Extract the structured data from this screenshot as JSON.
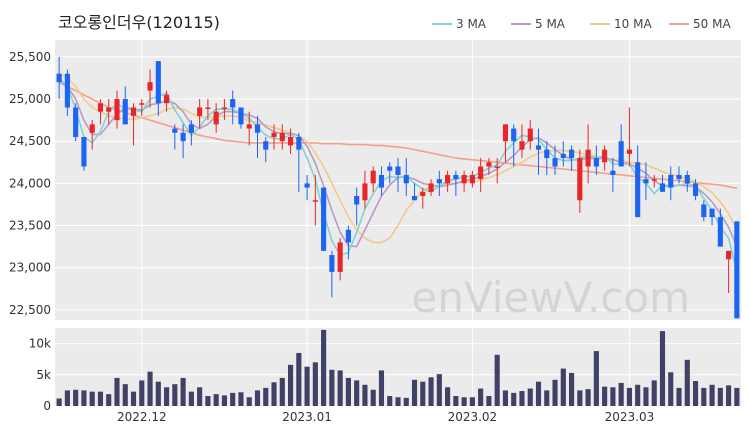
{
  "chart_data": {
    "type": "candlestick",
    "title": "코오롱인더우(120115)",
    "watermark": "enViewV.com",
    "colors": {
      "up": "#e8262a",
      "down": "#1c64f2",
      "ma3": "#7fd3cf",
      "ma5": "#b89ac8",
      "ma10": "#f2c98a",
      "ma50": "#f4a08a",
      "volume": "#3f4166",
      "plot_bg": "#ebebeb",
      "grid": "#ffffff"
    },
    "legend": [
      {
        "name": "3 MA",
        "key": "ma3"
      },
      {
        "name": "5 MA",
        "key": "ma5"
      },
      {
        "name": "10 MA",
        "key": "ma10"
      },
      {
        "name": "50 MA",
        "key": "ma50"
      }
    ],
    "price_axis": {
      "ylim": [
        22380,
        25700
      ],
      "ticks": [
        22500,
        23000,
        23500,
        24000,
        24500,
        25000,
        25500
      ],
      "tick_labels": [
        "22,500",
        "23,000",
        "23,500",
        "24,000",
        "24,500",
        "25,000",
        "25,500"
      ]
    },
    "volume_axis": {
      "ylim": [
        0,
        12500
      ],
      "ticks": [
        0,
        5000,
        10000
      ],
      "tick_labels": [
        "0",
        "5k",
        "10k"
      ]
    },
    "x_ticks": [
      {
        "index": 10,
        "label": "2022.12"
      },
      {
        "index": 30,
        "label": "2023.01"
      },
      {
        "index": 50,
        "label": "2023.02"
      },
      {
        "index": 69,
        "label": "2023.03"
      }
    ],
    "candles": [
      [
        25300,
        25500,
        25000,
        25200
      ],
      [
        25300,
        25350,
        24800,
        24900
      ],
      [
        24900,
        24950,
        24500,
        24550
      ],
      [
        24550,
        24550,
        24150,
        24200
      ],
      [
        24600,
        24750,
        24400,
        24700
      ],
      [
        24850,
        25000,
        24700,
        24950
      ],
      [
        24850,
        25000,
        24700,
        24900
      ],
      [
        24750,
        25100,
        24650,
        25000
      ],
      [
        25000,
        25150,
        24700,
        24700
      ],
      [
        24800,
        24950,
        24450,
        24900
      ],
      [
        24950,
        25000,
        24800,
        24950
      ],
      [
        25100,
        25350,
        24900,
        25200
      ],
      [
        25450,
        25450,
        24800,
        24950
      ],
      [
        24950,
        25100,
        24850,
        25050
      ],
      [
        24650,
        24700,
        24400,
        24600
      ],
      [
        24600,
        24700,
        24300,
        24500
      ],
      [
        24700,
        24750,
        24450,
        24600
      ],
      [
        24800,
        25000,
        24650,
        24900
      ],
      [
        24900,
        25000,
        24750,
        24900
      ],
      [
        24700,
        24950,
        24600,
        24850
      ],
      [
        24900,
        25000,
        24750,
        24900
      ],
      [
        25000,
        25100,
        24700,
        24900
      ],
      [
        24900,
        24900,
        24650,
        24700
      ],
      [
        24650,
        24850,
        24450,
        24700
      ],
      [
        24700,
        24800,
        24300,
        24600
      ],
      [
        24500,
        24550,
        24250,
        24400
      ],
      [
        24550,
        24700,
        24400,
        24600
      ],
      [
        24500,
        24700,
        24400,
        24600
      ],
      [
        24450,
        24650,
        24350,
        24550
      ],
      [
        24550,
        24600,
        23900,
        24400
      ],
      [
        24000,
        24100,
        23800,
        23950
      ],
      [
        23800,
        24100,
        23500,
        23800
      ],
      [
        23950,
        23950,
        23200,
        23200
      ],
      [
        23150,
        23200,
        22650,
        22950
      ],
      [
        22950,
        23350,
        22850,
        23300
      ],
      [
        23450,
        23500,
        23100,
        23300
      ],
      [
        23850,
        23950,
        23500,
        23750
      ],
      [
        23800,
        24150,
        23700,
        24000
      ],
      [
        24000,
        24200,
        23900,
        24150
      ],
      [
        24100,
        24200,
        23850,
        23950
      ],
      [
        24200,
        24250,
        24000,
        24150
      ],
      [
        24200,
        24300,
        23900,
        24100
      ],
      [
        24100,
        24300,
        23850,
        24000
      ],
      [
        23850,
        24000,
        23800,
        23800
      ],
      [
        23850,
        23950,
        23700,
        23900
      ],
      [
        23900,
        24050,
        23850,
        24000
      ],
      [
        24050,
        24150,
        23850,
        24000
      ],
      [
        24000,
        24150,
        23900,
        24100
      ],
      [
        24100,
        24150,
        23850,
        24050
      ],
      [
        24000,
        24150,
        23900,
        24100
      ],
      [
        24000,
        24150,
        23950,
        24100
      ],
      [
        24050,
        24300,
        23900,
        24200
      ],
      [
        24200,
        24300,
        24100,
        24250
      ],
      [
        24200,
        24300,
        24000,
        24200
      ],
      [
        24500,
        24700,
        24250,
        24700
      ],
      [
        24650,
        24700,
        24200,
        24500
      ],
      [
        24400,
        24700,
        24300,
        24500
      ],
      [
        24500,
        24750,
        24400,
        24650
      ],
      [
        24450,
        24650,
        24100,
        24400
      ],
      [
        24400,
        24500,
        24100,
        24300
      ],
      [
        24300,
        24450,
        24100,
        24200
      ],
      [
        24350,
        24500,
        24200,
        24300
      ],
      [
        24400,
        24450,
        24150,
        24300
      ],
      [
        23800,
        24400,
        23650,
        24300
      ],
      [
        24200,
        24700,
        24000,
        24400
      ],
      [
        24300,
        24450,
        24100,
        24200
      ],
      [
        24250,
        24450,
        24150,
        24400
      ],
      [
        24150,
        24300,
        23900,
        24100
      ],
      [
        24500,
        24700,
        24200,
        24200
      ],
      [
        24350,
        24900,
        24200,
        24400
      ],
      [
        24250,
        24450,
        23600,
        23600
      ],
      [
        24050,
        24250,
        23800,
        24000
      ],
      [
        24050,
        24100,
        23950,
        24050
      ],
      [
        24000,
        24100,
        23900,
        23900
      ],
      [
        24100,
        24200,
        23800,
        23950
      ],
      [
        24100,
        24200,
        24000,
        24050
      ],
      [
        24100,
        24150,
        23900,
        24000
      ],
      [
        24000,
        24050,
        23800,
        23850
      ],
      [
        23750,
        23800,
        23550,
        23600
      ],
      [
        23700,
        23700,
        23500,
        23600
      ],
      [
        23600,
        23700,
        23250,
        23250
      ],
      [
        23100,
        23200,
        22700,
        23200
      ],
      [
        23550,
        23550,
        22400,
        22400
      ]
    ],
    "ma3": [
      25250,
      25150,
      24880,
      24550,
      24480,
      24620,
      24850,
      24950,
      24880,
      24870,
      24850,
      25000,
      25030,
      25070,
      24870,
      24720,
      24570,
      24670,
      24800,
      24880,
      24880,
      24880,
      24830,
      24770,
      24670,
      24570,
      24530,
      24530,
      24580,
      24520,
      24300,
      24050,
      23650,
      23320,
      23150,
      23180,
      23420,
      23700,
      23880,
      24030,
      24080,
      24070,
      24080,
      24000,
      23930,
      23900,
      23970,
      24030,
      24050,
      24080,
      24080,
      24130,
      24180,
      24220,
      24380,
      24480,
      24570,
      24550,
      24520,
      24400,
      24300,
      24270,
      24270,
      24300,
      24330,
      24300,
      24330,
      24230,
      24230,
      24230,
      24070,
      24000,
      23880,
      23980,
      23970,
      23980,
      24000,
      23970,
      23820,
      23680,
      23480,
      23350,
      22950
    ],
    "ma5": [
      25200,
      25150,
      25000,
      24750,
      24580,
      24580,
      24700,
      24820,
      24900,
      24880,
      24870,
      24930,
      24950,
      24980,
      24950,
      24850,
      24700,
      24650,
      24700,
      24800,
      24850,
      24850,
      24830,
      24810,
      24770,
      24670,
      24610,
      24590,
      24590,
      24570,
      24440,
      24240,
      23970,
      23680,
      23420,
      23260,
      23250,
      23450,
      23650,
      23850,
      23980,
      24070,
      24080,
      24050,
      24000,
      23980,
      23960,
      23980,
      24000,
      24030,
      24050,
      24080,
      24120,
      24170,
      24250,
      24330,
      24430,
      24520,
      24540,
      24480,
      24400,
      24330,
      24280,
      24280,
      24300,
      24290,
      24300,
      24280,
      24250,
      24230,
      24180,
      24120,
      24030,
      23970,
      23960,
      23980,
      23970,
      23960,
      23880,
      23780,
      23640,
      23480,
      23250
    ],
    "ma10": [
      25300,
      25250,
      25150,
      25000,
      24900,
      24850,
      24800,
      24780,
      24760,
      24760,
      24780,
      24800,
      24830,
      24880,
      24900,
      24880,
      24830,
      24790,
      24780,
      24790,
      24800,
      24800,
      24780,
      24740,
      24720,
      24690,
      24660,
      24630,
      24600,
      24560,
      24500,
      24360,
      24200,
      24000,
      23800,
      23600,
      23450,
      23350,
      23300,
      23300,
      23350,
      23500,
      23680,
      23800,
      23920,
      23960,
      23980,
      24000,
      24000,
      24020,
      24020,
      24040,
      24070,
      24100,
      24150,
      24200,
      24250,
      24310,
      24360,
      24380,
      24390,
      24390,
      24380,
      24360,
      24340,
      24320,
      24300,
      24280,
      24270,
      24250,
      24240,
      24220,
      24180,
      24140,
      24110,
      24080,
      24060,
      24020,
      23960,
      23890,
      23780,
      23640,
      23450
    ],
    "ma50": [
      25200,
      25150,
      25100,
      25050,
      25000,
      24950,
      24900,
      24870,
      24840,
      24810,
      24780,
      24750,
      24720,
      24690,
      24660,
      24630,
      24600,
      24570,
      24550,
      24530,
      24510,
      24500,
      24490,
      24480,
      24480,
      24480,
      24480,
      24480,
      24480,
      24480,
      24480,
      24480,
      24470,
      24470,
      24470,
      24460,
      24460,
      24460,
      24450,
      24450,
      24440,
      24430,
      24420,
      24400,
      24380,
      24360,
      24340,
      24320,
      24300,
      24290,
      24280,
      24270,
      24260,
      24250,
      24240,
      24230,
      24220,
      24210,
      24200,
      24190,
      24180,
      24170,
      24160,
      24150,
      24140,
      24130,
      24120,
      24110,
      24100,
      24090,
      24080,
      24070,
      24060,
      24050,
      24040,
      24030,
      24020,
      24010,
      24000,
      23990,
      23980,
      23960,
      23940
    ],
    "volume": [
      1200,
      2500,
      2600,
      2500,
      2300,
      2300,
      1900,
      4500,
      3500,
      2300,
      4100,
      5500,
      3900,
      3000,
      3500,
      4500,
      2300,
      3000,
      1600,
      1900,
      1700,
      2100,
      2200,
      1400,
      2500,
      2900,
      3800,
      4500,
      6600,
      8500,
      6300,
      7000,
      12200,
      5800,
      5700,
      4500,
      4100,
      3400,
      2600,
      5700,
      1600,
      1400,
      1300,
      4200,
      3900,
      4600,
      5100,
      3000,
      1600,
      1400,
      1400,
      2800,
      1600,
      8200,
      2500,
      2100,
      2400,
      2800,
      3900,
      2500,
      4200,
      6000,
      5300,
      2500,
      2700,
      8800,
      3100,
      3000,
      3700,
      2900,
      3400,
      3000,
      4100,
      12000,
      5400,
      2900,
      7400,
      4000,
      2900,
      3400,
      2900,
      3300,
      2900
    ]
  }
}
